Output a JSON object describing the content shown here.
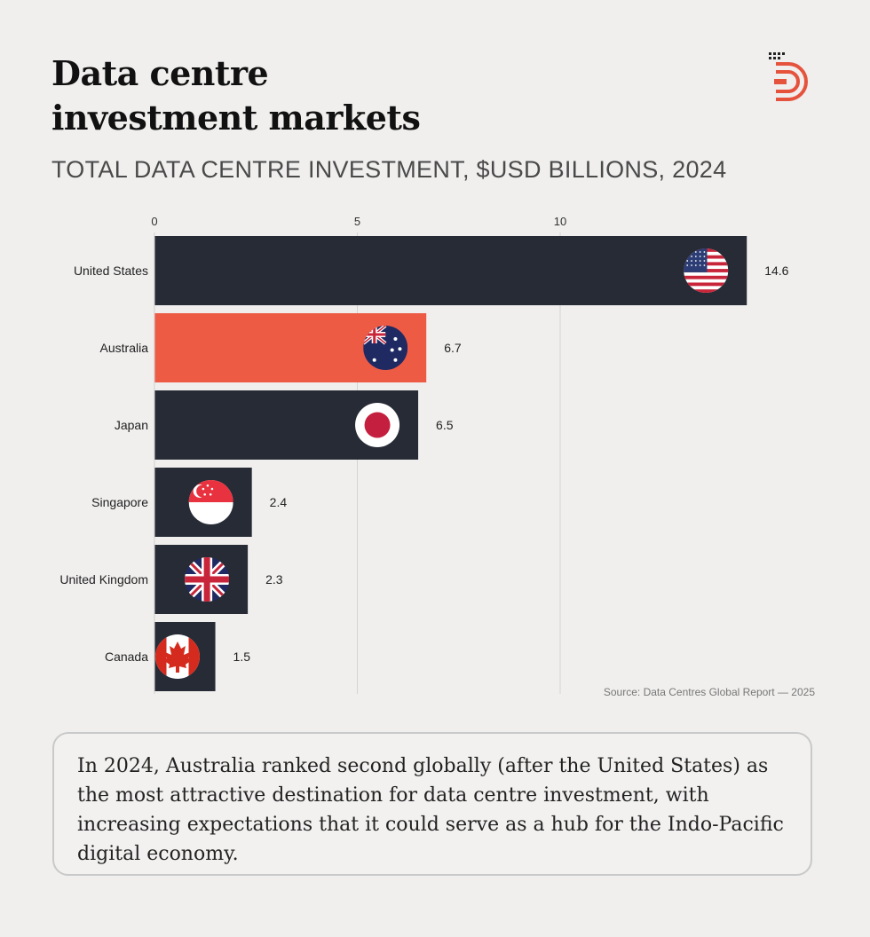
{
  "header": {
    "title_line1": "Data centre",
    "title_line2": "investment markets",
    "subtitle": "TOTAL DATA CENTRE INVESTMENT, $USD BILLIONS, 2024"
  },
  "logo": {
    "icon": "brand-logo-icon",
    "color": "#e5533d"
  },
  "chart_data": {
    "type": "bar",
    "orientation": "horizontal",
    "categories": [
      "United States",
      "Australia",
      "Japan",
      "Singapore",
      "United Kingdom",
      "Canada"
    ],
    "values": [
      14.6,
      6.7,
      6.5,
      2.4,
      2.3,
      1.5
    ],
    "value_labels": [
      "14.6",
      "6.7",
      "6.5",
      "2.4",
      "2.3",
      "1.5"
    ],
    "flags": [
      "us-flag-icon",
      "australia-flag-icon",
      "japan-flag-icon",
      "singapore-flag-icon",
      "uk-flag-icon",
      "canada-flag-icon"
    ],
    "bar_colors": [
      "#262b35",
      "#ee5b45",
      "#262b35",
      "#262b35",
      "#262b35",
      "#262b35"
    ],
    "x_ticks": [
      "0",
      "5",
      "10"
    ],
    "x_tick_values": [
      0,
      5,
      10
    ],
    "xlim": [
      0,
      15
    ],
    "grid": true,
    "title": "TOTAL DATA CENTRE INVESTMENT, $USD BILLIONS, 2024",
    "xlabel": "",
    "ylabel": ""
  },
  "source": "Source: Data Centres Global Report — 2025",
  "callout": {
    "text": "In 2024, Australia ranked second globally (after the United States) as the most attractive destination for data centre investment, with increasing expectations that it could serve as a hub for the Indo-Pacific digital economy."
  }
}
